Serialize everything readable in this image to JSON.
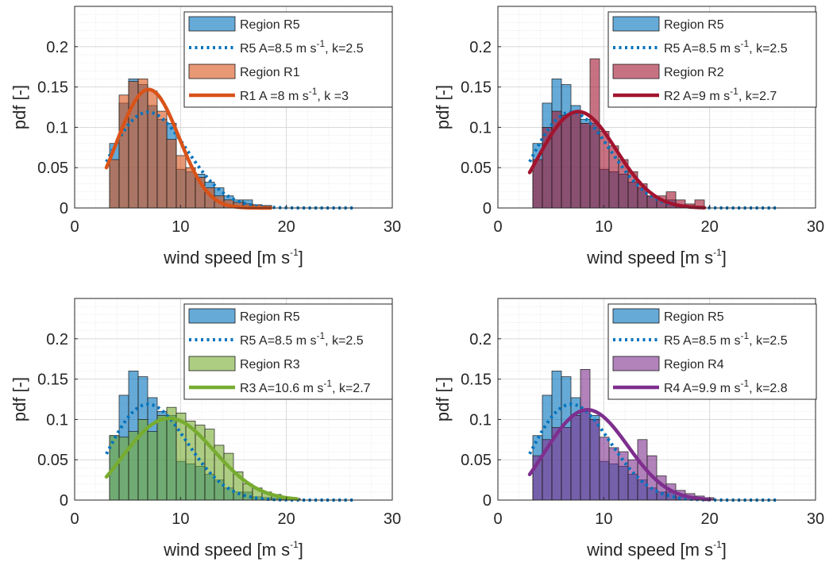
{
  "chart_data": [
    {
      "type": "bar",
      "xlabel": "wind speed [m s",
      "xlabel_sup": "-1",
      "xlabel_end": "]",
      "ylabel": "pdf [-]",
      "xlim": [
        0,
        30
      ],
      "ylim": [
        0,
        0.25
      ],
      "xticks": [
        "0",
        "10",
        "20",
        "30"
      ],
      "yticks": [
        "0",
        "0.05",
        "0.1",
        "0.15",
        "0.2"
      ],
      "grid": true,
      "legend_position": "top-right",
      "bin_edges": [
        3.3,
        4.2,
        5.1,
        6.0,
        6.9,
        7.8,
        8.7,
        9.6,
        10.5,
        11.4,
        12.3,
        13.2,
        14.1,
        15.0,
        15.9,
        16.8,
        17.7,
        18.6
      ],
      "reference": {
        "color": "#0072BD",
        "hist_values": [
          0.08,
          0.13,
          0.16,
          0.153,
          0.127,
          0.11,
          0.105,
          0.048,
          0.045,
          0.042,
          0.032,
          0.025,
          0.015,
          0.01,
          0.01,
          0.004,
          0.003
        ],
        "fit_A": 8.5,
        "fit_k": 2.5,
        "fit_range": [
          3,
          26.5
        ]
      },
      "compare": {
        "color": "#D95319",
        "hist_values": [
          0.06,
          0.14,
          0.157,
          0.16,
          0.145,
          0.12,
          0.085,
          0.065,
          0.05,
          0.038,
          0.025,
          0.015,
          0.01,
          0.007,
          0.005,
          0.004,
          0.003
        ],
        "fit_A": 8,
        "fit_k": 3,
        "fit_range": [
          3,
          18.5
        ]
      },
      "legend": [
        {
          "kind": "patch",
          "series": "reference",
          "text": "Region R5"
        },
        {
          "kind": "dotted",
          "series": "reference",
          "text": "R5 A=8.5 m s",
          "sup": "-1",
          "after": ", k=2.5"
        },
        {
          "kind": "patch",
          "series": "compare",
          "text": "Region R1"
        },
        {
          "kind": "solid",
          "series": "compare",
          "text": "R1 A =8 m s",
          "sup": "-1",
          "after": ", k =3"
        }
      ]
    },
    {
      "type": "bar",
      "xlabel": "wind speed [m s",
      "xlabel_sup": "-1",
      "xlabel_end": "]",
      "ylabel": "pdf [-]",
      "xlim": [
        0,
        30
      ],
      "ylim": [
        0,
        0.25
      ],
      "xticks": [
        "0",
        "10",
        "20",
        "30"
      ],
      "yticks": [
        "0",
        "0.05",
        "0.1",
        "0.15",
        "0.2"
      ],
      "grid": true,
      "legend_position": "top-right",
      "bin_edges": [
        3.3,
        4.2,
        5.1,
        6.0,
        6.9,
        7.8,
        8.7,
        9.6,
        10.5,
        11.4,
        12.3,
        13.2,
        14.1,
        15.0,
        15.9,
        16.8,
        17.7,
        18.6,
        19.5
      ],
      "reference": {
        "color": "#0072BD",
        "hist_values": [
          0.08,
          0.13,
          0.16,
          0.153,
          0.127,
          0.11,
          0.105,
          0.048,
          0.045,
          0.042,
          0.032,
          0.025,
          0.015,
          0.01,
          0.01,
          0.004,
          0.003,
          0.002
        ],
        "fit_A": 8.5,
        "fit_k": 2.5,
        "fit_range": [
          3,
          26.5
        ]
      },
      "compare": {
        "color": "#A2142F",
        "hist_values": [
          0.06,
          0.1,
          0.12,
          0.115,
          0.12,
          0.105,
          0.185,
          0.095,
          0.077,
          0.06,
          0.045,
          0.03,
          0.015,
          0.015,
          0.02,
          0.01,
          0.005,
          0.01
        ],
        "fit_A": 9,
        "fit_k": 2.7,
        "fit_range": [
          3,
          19.5
        ]
      },
      "legend": [
        {
          "kind": "patch",
          "series": "reference",
          "text": "Region R5"
        },
        {
          "kind": "dotted",
          "series": "reference",
          "text": "R5 A=8.5 m s",
          "sup": "-1",
          "after": ", k=2.5"
        },
        {
          "kind": "patch",
          "series": "compare",
          "text": "Region R2"
        },
        {
          "kind": "solid",
          "series": "compare",
          "text": "R2 A=9 m s",
          "sup": "-1",
          "after": ", k=2.7"
        }
      ]
    },
    {
      "type": "bar",
      "xlabel": "wind speed [m s",
      "xlabel_sup": "-1",
      "xlabel_end": "]",
      "ylabel": "pdf [-]",
      "xlim": [
        0,
        30
      ],
      "ylim": [
        0,
        0.25
      ],
      "xticks": [
        "0",
        "10",
        "20",
        "30"
      ],
      "yticks": [
        "0",
        "0.05",
        "0.1",
        "0.15",
        "0.2"
      ],
      "grid": true,
      "legend_position": "top-right",
      "bin_edges": [
        3.3,
        4.2,
        5.1,
        6.0,
        6.9,
        7.8,
        8.7,
        9.6,
        10.5,
        11.4,
        12.3,
        13.2,
        14.1,
        15.0,
        15.9,
        16.8,
        17.7,
        18.6,
        19.5,
        20.4,
        21.3
      ],
      "reference": {
        "color": "#0072BD",
        "hist_values": [
          0.08,
          0.13,
          0.16,
          0.153,
          0.127,
          0.11,
          0.105,
          0.048,
          0.045,
          0.042,
          0.032,
          0.025,
          0.015,
          0.01,
          0.01,
          0.004,
          0.003,
          0.002,
          0.001,
          0.001
        ],
        "fit_A": 8.5,
        "fit_k": 2.5,
        "fit_range": [
          3,
          26.5
        ]
      },
      "compare": {
        "color": "#77AC30",
        "hist_values": [
          0.08,
          0.078,
          0.085,
          0.1,
          0.085,
          0.105,
          0.115,
          0.108,
          0.098,
          0.093,
          0.088,
          0.068,
          0.058,
          0.035,
          0.02,
          0.015,
          0.01,
          0.007,
          0.004,
          0.002
        ],
        "fit_A": 10.6,
        "fit_k": 2.7,
        "fit_range": [
          3,
          21
        ]
      },
      "legend": [
        {
          "kind": "patch",
          "series": "reference",
          "text": "Region R5"
        },
        {
          "kind": "dotted",
          "series": "reference",
          "text": "R5 A=8.5 m s",
          "sup": "-1",
          "after": ", k=2.5"
        },
        {
          "kind": "patch",
          "series": "compare",
          "text": "Region R3"
        },
        {
          "kind": "solid",
          "series": "compare",
          "text": "R3 A=10.6 m s",
          "sup": "-1",
          "after": ", k=2.7"
        }
      ]
    },
    {
      "type": "bar",
      "xlabel": "wind speed [m s",
      "xlabel_sup": "-1",
      "xlabel_end": "]",
      "ylabel": "pdf [-]",
      "xlim": [
        0,
        30
      ],
      "ylim": [
        0,
        0.25
      ],
      "xticks": [
        "0",
        "10",
        "20",
        "30"
      ],
      "yticks": [
        "0",
        "0.05",
        "0.1",
        "0.15",
        "0.2"
      ],
      "grid": true,
      "legend_position": "top-right",
      "bin_edges": [
        3.3,
        4.2,
        5.1,
        6.0,
        6.9,
        7.8,
        8.7,
        9.6,
        10.5,
        11.4,
        12.3,
        13.2,
        14.1,
        15.0,
        15.9,
        16.8,
        17.7,
        18.6,
        19.5,
        20.4
      ],
      "reference": {
        "color": "#0072BD",
        "hist_values": [
          0.08,
          0.13,
          0.16,
          0.153,
          0.127,
          0.11,
          0.105,
          0.048,
          0.045,
          0.042,
          0.032,
          0.025,
          0.015,
          0.01,
          0.01,
          0.004,
          0.003,
          0.002,
          0.001
        ],
        "fit_A": 8.5,
        "fit_k": 2.5,
        "fit_range": [
          3,
          26.5
        ]
      },
      "compare": {
        "color": "#7E2F8E",
        "hist_values": [
          0.055,
          0.075,
          0.09,
          0.09,
          0.105,
          0.162,
          0.1,
          0.078,
          0.065,
          0.06,
          0.05,
          0.075,
          0.055,
          0.03,
          0.02,
          0.012,
          0.008,
          0.005,
          0.003
        ],
        "fit_A": 9.9,
        "fit_k": 2.8,
        "fit_range": [
          3,
          20
        ]
      },
      "legend": [
        {
          "kind": "patch",
          "series": "reference",
          "text": "Region R5"
        },
        {
          "kind": "dotted",
          "series": "reference",
          "text": "R5 A=8.5 m s",
          "sup": "-1",
          "after": ", k=2.5"
        },
        {
          "kind": "patch",
          "series": "compare",
          "text": "Region R4"
        },
        {
          "kind": "solid",
          "series": "compare",
          "text": "R4 A=9.9 m s",
          "sup": "-1",
          "after": ", k=2.8"
        }
      ]
    }
  ]
}
